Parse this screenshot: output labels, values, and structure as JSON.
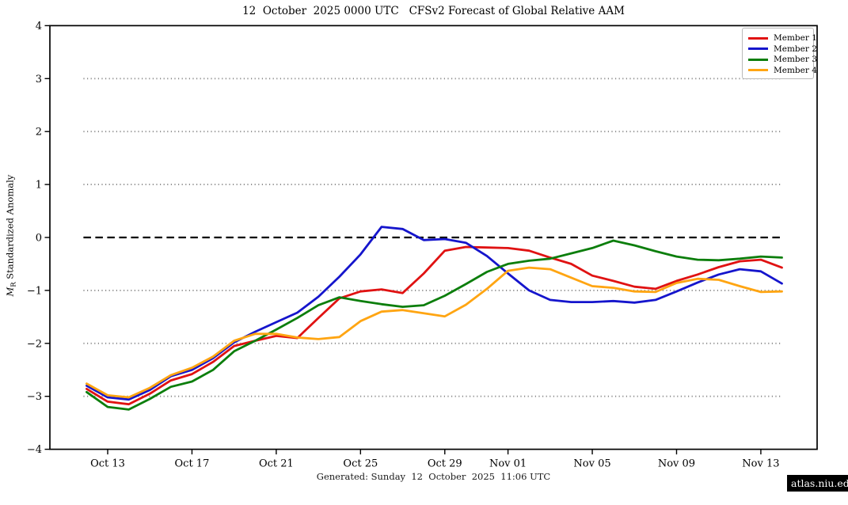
{
  "title": "12  October  2025 0000 UTC   CFSv2 Forecast of Global Relative AAM",
  "footer": "Generated: Sunday  12  October  2025  11:06 UTC",
  "watermark": "atlas.niu.edu",
  "y_axis": {
    "label_var": "M",
    "label_var_sub": "R",
    "label_rest": " Standardized Anomaly"
  },
  "chart_data": {
    "type": "line",
    "title": "12 October 2025 0000 UTC CFSv2 Forecast of Global Relative AAM",
    "xlabel": "",
    "ylabel": "M_R Standardized Anomaly",
    "ylim": [
      -4,
      4
    ],
    "y_ticks": [
      -4,
      -3,
      -2,
      -1,
      0,
      1,
      2,
      3,
      4
    ],
    "gridlines_dotted": [
      -3,
      -2,
      -1,
      1,
      2,
      3
    ],
    "zero_line": 0,
    "grid": "horizontal dotted gray lines at integers, black dashed line at 0, drawn over data extent only",
    "legend_position": "top-right",
    "x_ticks": [
      "Oct 13",
      "Oct 17",
      "Oct 21",
      "Oct 25",
      "Oct 29",
      "Nov 01",
      "Nov 05",
      "Nov 09",
      "Nov 13"
    ],
    "x": [
      "Oct 12",
      "Oct 13",
      "Oct 14",
      "Oct 15",
      "Oct 16",
      "Oct 17",
      "Oct 18",
      "Oct 19",
      "Oct 20",
      "Oct 21",
      "Oct 22",
      "Oct 23",
      "Oct 24",
      "Oct 25",
      "Oct 26",
      "Oct 27",
      "Oct 28",
      "Oct 29",
      "Oct 30",
      "Oct 31",
      "Nov 01",
      "Nov 02",
      "Nov 03",
      "Nov 04",
      "Nov 05",
      "Nov 06",
      "Nov 07",
      "Nov 08",
      "Nov 09",
      "Nov 10",
      "Nov 11",
      "Nov 12",
      "Nov 13",
      "Nov 14"
    ],
    "series": [
      {
        "name": "Member 1",
        "color": "#e01212",
        "values": [
          -2.86,
          -3.1,
          -3.15,
          -2.95,
          -2.7,
          -2.58,
          -2.35,
          -2.05,
          -1.95,
          -1.86,
          -1.9,
          -1.52,
          -1.15,
          -1.02,
          -0.98,
          -1.05,
          -0.68,
          -0.25,
          -0.18,
          -0.19,
          -0.2,
          -0.25,
          -0.38,
          -0.5,
          -0.72,
          -0.82,
          -0.93,
          -0.97,
          -0.82,
          -0.7,
          -0.56,
          -0.45,
          -0.42,
          -0.57
        ]
      },
      {
        "name": "Member 2",
        "color": "#1515cc",
        "values": [
          -2.8,
          -3.02,
          -3.06,
          -2.88,
          -2.62,
          -2.5,
          -2.28,
          -1.98,
          -1.78,
          -1.6,
          -1.42,
          -1.12,
          -0.74,
          -0.32,
          0.2,
          0.16,
          -0.05,
          -0.03,
          -0.1,
          -0.35,
          -0.68,
          -1.0,
          -1.18,
          -1.22,
          -1.22,
          -1.2,
          -1.23,
          -1.18,
          -1.02,
          -0.85,
          -0.7,
          -0.6,
          -0.64,
          -0.87
        ]
      },
      {
        "name": "Member 3",
        "color": "#0c7e0c",
        "values": [
          -2.92,
          -3.2,
          -3.25,
          -3.05,
          -2.82,
          -2.72,
          -2.5,
          -2.15,
          -1.95,
          -1.74,
          -1.52,
          -1.28,
          -1.13,
          -1.2,
          -1.26,
          -1.31,
          -1.28,
          -1.1,
          -0.88,
          -0.65,
          -0.5,
          -0.44,
          -0.4,
          -0.3,
          -0.2,
          -0.06,
          -0.15,
          -0.26,
          -0.36,
          -0.42,
          -0.43,
          -0.4,
          -0.36,
          -0.38
        ]
      },
      {
        "name": "Member 4",
        "color": "#ffa512",
        "values": [
          -2.76,
          -2.98,
          -3.02,
          -2.84,
          -2.6,
          -2.46,
          -2.25,
          -1.95,
          -1.82,
          -1.82,
          -1.89,
          -1.92,
          -1.88,
          -1.58,
          -1.4,
          -1.37,
          -1.43,
          -1.49,
          -1.27,
          -0.97,
          -0.63,
          -0.57,
          -0.6,
          -0.76,
          -0.92,
          -0.95,
          -1.02,
          -1.03,
          -0.86,
          -0.78,
          -0.8,
          -0.92,
          -1.03,
          -1.02
        ]
      }
    ]
  }
}
